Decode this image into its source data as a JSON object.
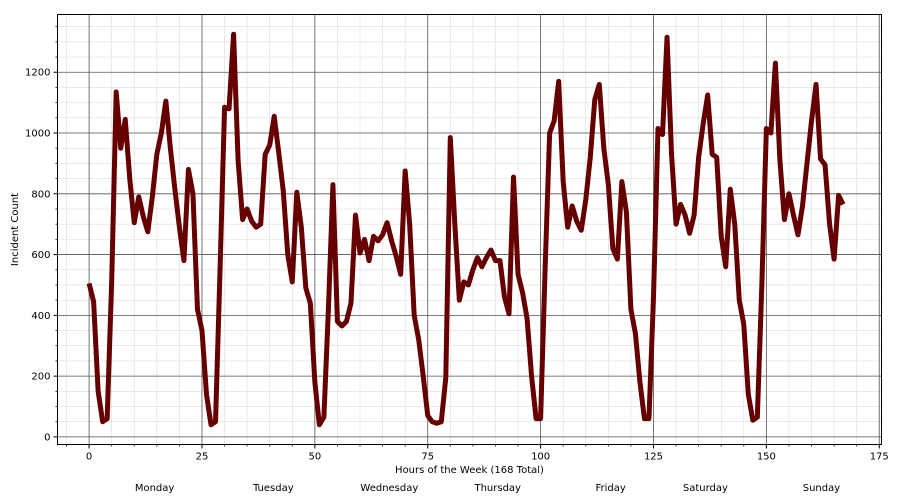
{
  "chart_data": {
    "type": "line",
    "xlabel": "Hours of the Week (168 Total)",
    "ylabel": "Incident Count",
    "xlim": [
      -7,
      175.5
    ],
    "ylim": [
      -25,
      1390
    ],
    "x_ticks": [
      0,
      25,
      50,
      75,
      100,
      125,
      150,
      175
    ],
    "y_ticks": [
      0,
      200,
      400,
      600,
      800,
      1000,
      1200
    ],
    "x_minor_step": 5,
    "y_minor_step": 50,
    "grid": true,
    "line_color": "#660000",
    "day_labels": [
      {
        "label": "Monday",
        "center": 14.5
      },
      {
        "label": "Tuesday",
        "center": 40.8
      },
      {
        "label": "Wednesday",
        "center": 66.5
      },
      {
        "label": "Thursday",
        "center": 90.5
      },
      {
        "label": "Friday",
        "center": 115.5
      },
      {
        "label": "Saturday",
        "center": 136.5
      },
      {
        "label": "Sunday",
        "center": 162.2
      }
    ],
    "series": [
      {
        "x": [
          0,
          1,
          2,
          3,
          4,
          5,
          6,
          7,
          8,
          9,
          10,
          11,
          12,
          13,
          14,
          15,
          16,
          17,
          18,
          19,
          20,
          21,
          22,
          23,
          24,
          25,
          26,
          27,
          28,
          29,
          30,
          31,
          32,
          33,
          34,
          35,
          36,
          37,
          38,
          39,
          40,
          41,
          42,
          43,
          44,
          45,
          46,
          47,
          48,
          49,
          50,
          51,
          52,
          53,
          54,
          55,
          56,
          57,
          58,
          59,
          60,
          61,
          62,
          63,
          64,
          65,
          66,
          67,
          68,
          69,
          70,
          71,
          72,
          73,
          74,
          75,
          76,
          77,
          78,
          79,
          80,
          81,
          82,
          83,
          84,
          85,
          86,
          87,
          88,
          89,
          90,
          91,
          92,
          93,
          94,
          95,
          96,
          97,
          98,
          99,
          100,
          101,
          102,
          103,
          104,
          105,
          106,
          107,
          108,
          109,
          110,
          111,
          112,
          113,
          114,
          115,
          116,
          117,
          118,
          119,
          120,
          121,
          122,
          123,
          124,
          125,
          126,
          127,
          128,
          129,
          130,
          131,
          132,
          133,
          134,
          135,
          136,
          137,
          138,
          139,
          140,
          141,
          142,
          143,
          144,
          145,
          146,
          147,
          148,
          149,
          150,
          151,
          152,
          153,
          154,
          155,
          156,
          157,
          158,
          159,
          160,
          161,
          162,
          163,
          164,
          165,
          166,
          167
        ],
        "values": [
          505,
          445,
          150,
          50,
          60,
          510,
          1135,
          950,
          1045,
          850,
          705,
          790,
          725,
          675,
          790,
          930,
          1000,
          1105,
          950,
          815,
          690,
          580,
          880,
          800,
          420,
          350,
          140,
          40,
          50,
          550,
          1085,
          1080,
          1325,
          910,
          715,
          750,
          710,
          690,
          700,
          930,
          960,
          1055,
          935,
          810,
          600,
          510,
          805,
          690,
          490,
          440,
          180,
          40,
          65,
          420,
          830,
          380,
          365,
          380,
          440,
          730,
          605,
          650,
          580,
          660,
          645,
          665,
          705,
          645,
          595,
          535,
          875,
          700,
          400,
          320,
          200,
          70,
          50,
          45,
          50,
          195,
          985,
          700,
          450,
          510,
          500,
          550,
          590,
          560,
          590,
          615,
          580,
          580,
          460,
          405,
          855,
          535,
          475,
          390,
          200,
          60,
          60,
          555,
          1000,
          1040,
          1170,
          840,
          690,
          760,
          710,
          680,
          780,
          920,
          1110,
          1160,
          950,
          830,
          620,
          585,
          840,
          740,
          420,
          340,
          180,
          60,
          60,
          460,
          1015,
          995,
          1315,
          930,
          700,
          765,
          730,
          670,
          730,
          920,
          1030,
          1125,
          930,
          920,
          660,
          560,
          815,
          700,
          450,
          370,
          140,
          55,
          65,
          500,
          1015,
          1000,
          1230,
          910,
          715,
          800,
          730,
          665,
          760,
          900,
          1040,
          1160,
          915,
          895,
          700,
          585,
          795,
          765
        ]
      }
    ]
  }
}
